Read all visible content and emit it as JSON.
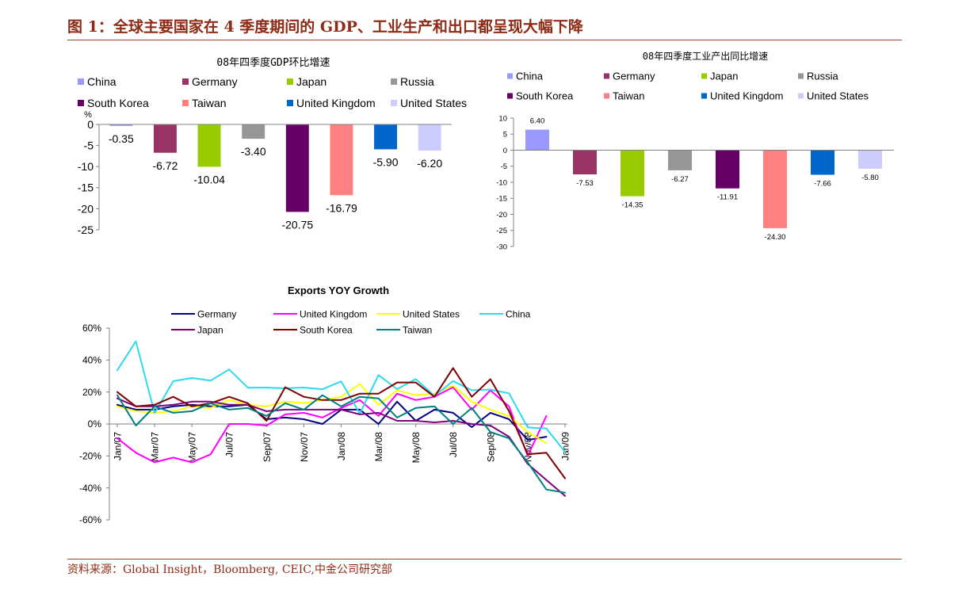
{
  "header": {
    "title": "图 1：全球主要国家在 4 季度期间的 GDP、工业生产和出口都呈现大幅下降"
  },
  "footer": {
    "source": "资料来源：Global Insight，Bloomberg, CEIC,中金公司研究部"
  },
  "colors": {
    "accent": "#8E2B16",
    "rule": "#9A4B37",
    "axis": "#808080"
  },
  "chart_data": [
    {
      "type": "bar",
      "title": "08年四季度GDP环比增速",
      "ylabel": "%",
      "categories": [
        "China",
        "Germany",
        "Japan",
        "Russia",
        "South Korea",
        "Taiwan",
        "United Kingdom",
        "United States"
      ],
      "values": [
        -0.35,
        -6.72,
        -10.04,
        -3.4,
        -20.75,
        -16.79,
        -5.9,
        -6.2
      ],
      "data_labels": [
        "-0.35",
        "-6.72",
        "-10.04",
        "-3.40",
        "-20.75",
        "-16.79",
        "-5.90",
        "-6.20"
      ],
      "colors": [
        "#9999FF",
        "#993366",
        "#99CC00",
        "#969696",
        "#660066",
        "#FF8080",
        "#0066CC",
        "#CCCCFF"
      ],
      "ylim": [
        -25,
        0
      ],
      "yticks": [
        0,
        -5,
        -10,
        -15,
        -20,
        -25
      ],
      "legend": "top",
      "grid": false
    },
    {
      "type": "bar",
      "title": "08年四季度工业产出同比增速",
      "categories": [
        "China",
        "Germany",
        "Japan",
        "Russia",
        "South Korea",
        "Taiwan",
        "United Kingdom",
        "United States"
      ],
      "values": [
        6.4,
        -7.53,
        -14.35,
        -6.27,
        -11.91,
        -24.3,
        -7.66,
        -5.8
      ],
      "data_labels": [
        "6.40",
        "-7.53",
        "-14.35",
        "-6.27",
        "-11.91",
        "-24.30",
        "-7.66",
        "-5.80"
      ],
      "colors": [
        "#9999FF",
        "#993366",
        "#99CC00",
        "#969696",
        "#660066",
        "#FF8080",
        "#0066CC",
        "#CCCCFF"
      ],
      "ylim": [
        -30,
        10
      ],
      "yticks": [
        10,
        5,
        0,
        -5,
        -10,
        -15,
        -20,
        -25,
        -30
      ],
      "legend": "top",
      "grid": false
    },
    {
      "type": "line",
      "title": "Exports YOY Growth",
      "xticks": [
        "Jan/07",
        "Mar/07",
        "May/07",
        "Jul/07",
        "Sep/07",
        "Nov/07",
        "Jan/08",
        "Mar/08",
        "May/08",
        "Jul/08",
        "Sep/08",
        "Nov/08",
        "Jan/09"
      ],
      "ylim": [
        -60,
        60
      ],
      "yticks": [
        60,
        40,
        20,
        0,
        -20,
        -40,
        -60
      ],
      "ytick_labels": [
        "60%",
        "40%",
        "20%",
        "0%",
        "-20%",
        "-40%",
        "-60%"
      ],
      "legend": "top",
      "grid": false,
      "series": [
        {
          "name": "Germany",
          "color": "#000080",
          "values": [
            12,
            9,
            9,
            11,
            12,
            11,
            11,
            12,
            3,
            4,
            3,
            0,
            9,
            9,
            0,
            14,
            2,
            9,
            7,
            -2,
            7,
            3,
            -10,
            -8
          ]
        },
        {
          "name": "United Kingdom",
          "color": "#FF00FF",
          "values": [
            -9,
            -18,
            -24,
            -21,
            -24,
            -19,
            0,
            0,
            -1,
            6,
            7,
            4,
            10,
            15,
            5,
            19,
            15,
            17,
            23,
            9,
            21,
            11,
            -20,
            5
          ]
        },
        {
          "name": "United States",
          "color": "#FFFF00",
          "values": [
            11,
            8,
            7,
            8,
            11,
            10,
            15,
            12,
            11,
            14,
            13,
            15,
            17,
            25,
            12,
            21,
            18,
            19,
            24,
            14,
            9,
            5,
            -5,
            -12
          ]
        },
        {
          "name": "China",
          "color": "#2DD9F0",
          "values": [
            33.6,
            51.7,
            6.8,
            26.8,
            28.8,
            27.1,
            34.1,
            22.7,
            22.8,
            22.3,
            22.8,
            21.7,
            26.7,
            6.5,
            30.6,
            21.8,
            28.1,
            17.6,
            26.9,
            21.1,
            21.5,
            19.2,
            -2.2,
            -2.8,
            -17.5
          ]
        },
        {
          "name": "Japan",
          "color": "#800080",
          "values": [
            16,
            11,
            11,
            12,
            14,
            14,
            12,
            12,
            8,
            9,
            9,
            9,
            9,
            6,
            7,
            2,
            2,
            1,
            2,
            0,
            -1,
            -8,
            -25,
            -35,
            -45
          ]
        },
        {
          "name": "South Korea",
          "color": "#800000",
          "values": [
            20,
            11,
            12,
            17,
            11,
            13,
            17,
            13,
            2,
            23,
            17,
            15,
            15,
            19,
            19,
            26,
            26,
            17,
            35,
            17,
            28,
            8,
            -19,
            -18,
            -34
          ]
        },
        {
          "name": "Taiwan",
          "color": "#008080",
          "values": [
            18,
            -1,
            11,
            7,
            8,
            13,
            9,
            10,
            5,
            13,
            9,
            18,
            11,
            17,
            16,
            4,
            10,
            11,
            0,
            10,
            -5,
            -9,
            -24,
            -41,
            -43
          ]
        }
      ]
    }
  ]
}
